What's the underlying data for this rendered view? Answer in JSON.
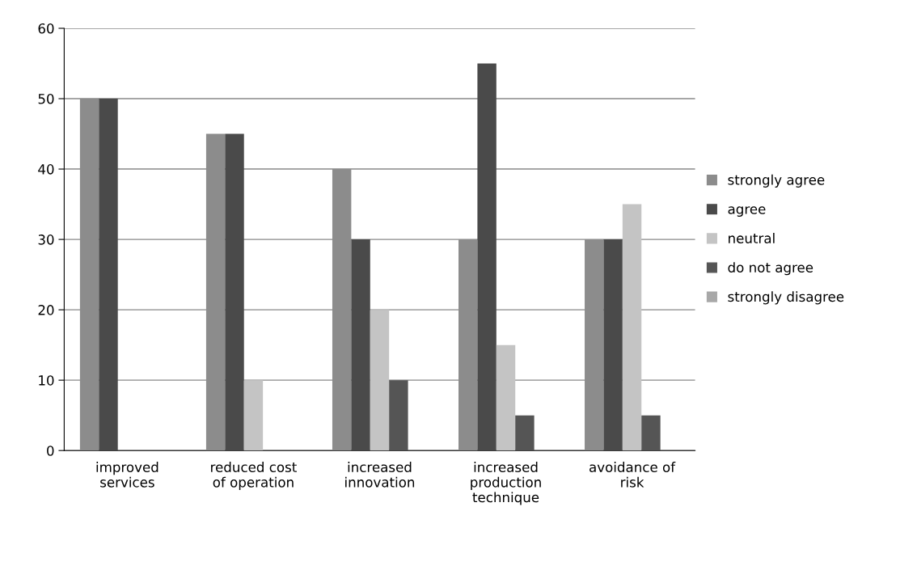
{
  "chart_data": {
    "type": "bar",
    "categories": [
      "improved\nservices",
      "reduced cost\nof operation",
      "increased\ninnovation",
      "increased\nproduction\ntechnique",
      "avoidance of\nrisk"
    ],
    "series": [
      {
        "name": "strongly agree",
        "color": "#8c8c8c",
        "values": [
          50,
          45,
          40,
          30,
          30
        ]
      },
      {
        "name": "agree",
        "color": "#4a4a4a",
        "values": [
          50,
          45,
          30,
          55,
          30
        ]
      },
      {
        "name": "neutral",
        "color": "#c4c4c4",
        "values": [
          0,
          10,
          20,
          15,
          35
        ]
      },
      {
        "name": "do not agree",
        "color": "#555555",
        "values": [
          0,
          0,
          10,
          5,
          5
        ]
      },
      {
        "name": "strongly disagree",
        "color": "#a8a8a8",
        "values": [
          0,
          0,
          0,
          0,
          0
        ]
      }
    ],
    "ylim": [
      0,
      60
    ],
    "yticks": [
      0,
      10,
      20,
      30,
      40,
      50,
      60
    ],
    "grid": "y",
    "legend": "right"
  }
}
